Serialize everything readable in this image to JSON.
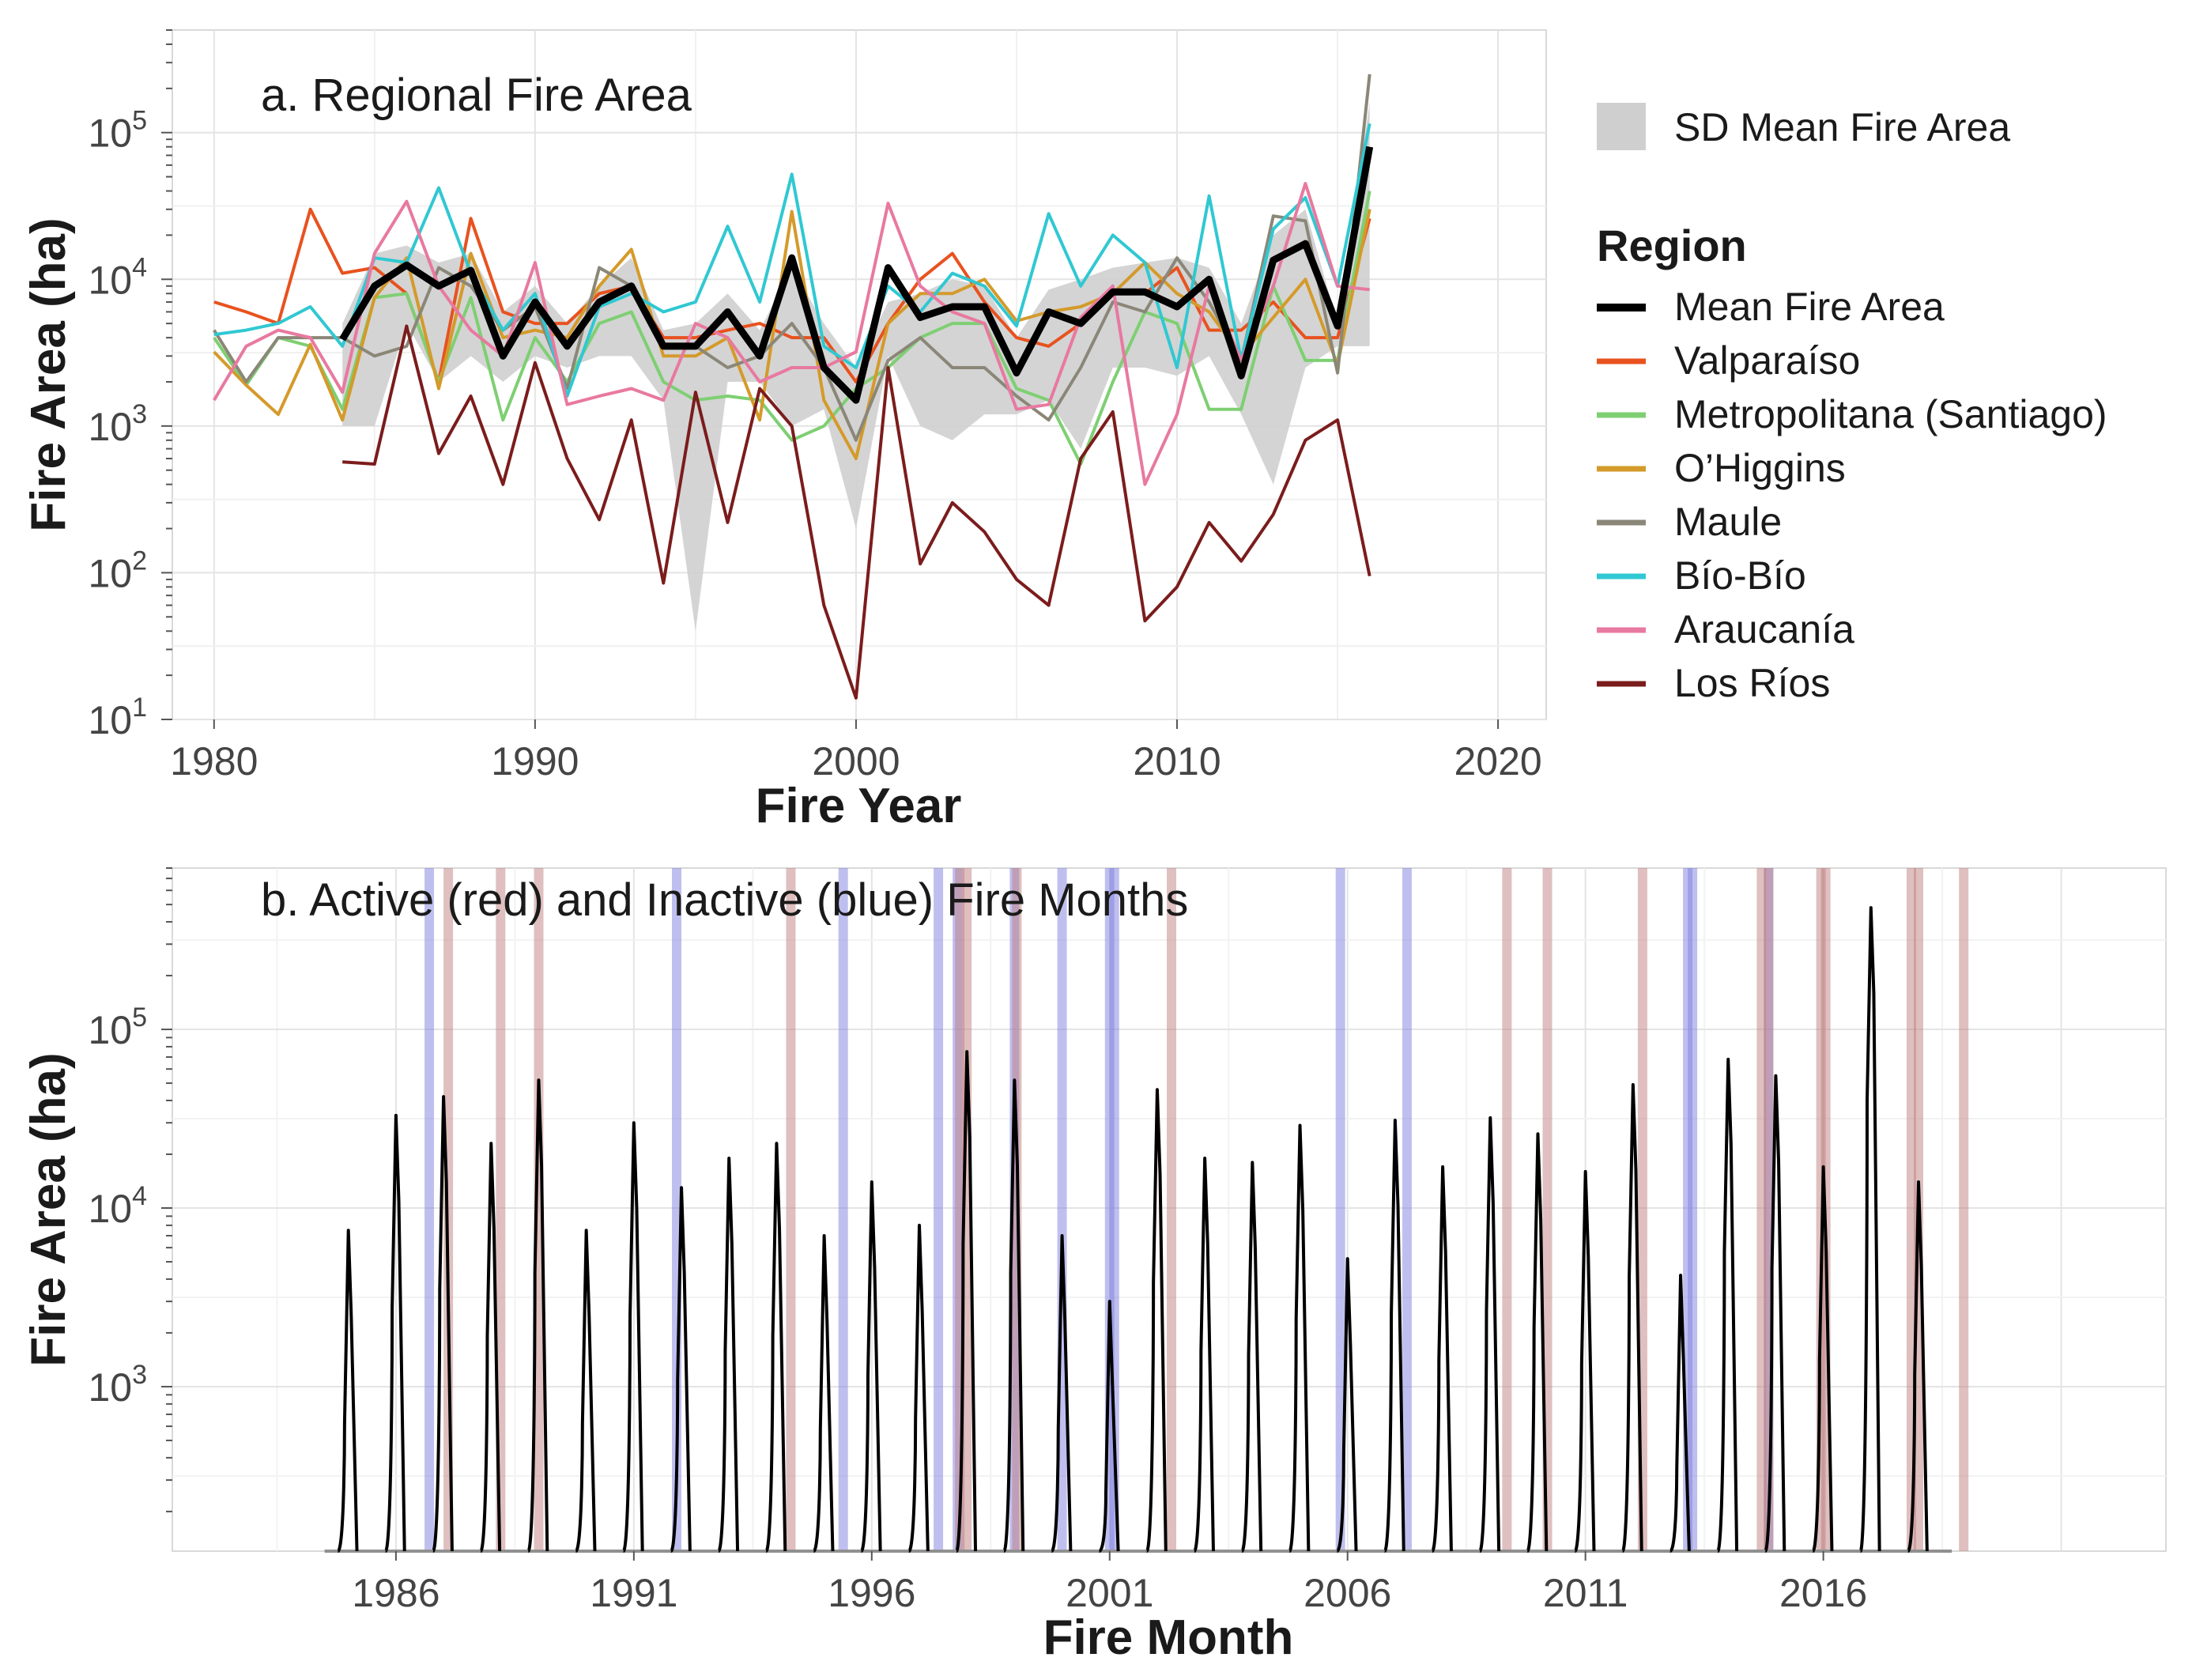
{
  "chart_data": [
    {
      "type": "line",
      "panel": "a",
      "title": "a. Regional Fire Area",
      "xlabel": "Fire Year",
      "ylabel": "Fire Area (ha)",
      "xlim": [
        1978.7,
        2021.5
      ],
      "ylim": [
        10,
        500000
      ],
      "yscale": "log",
      "x_ticks": [
        "1980",
        "1990",
        "2000",
        "2010",
        "2020"
      ],
      "y_ticks": [
        {
          "base": "10",
          "exp": "1"
        },
        {
          "base": "10",
          "exp": "2"
        },
        {
          "base": "10",
          "exp": "3"
        },
        {
          "base": "10",
          "exp": "4"
        },
        {
          "base": "10",
          "exp": "5"
        }
      ],
      "grid": true,
      "legend_position": "right",
      "band": {
        "name": "SD Mean Fire Area",
        "color": "#cfcfcf",
        "x": [
          1984,
          1985,
          1986,
          1987,
          1988,
          1989,
          1990,
          1991,
          1992,
          1993,
          1994,
          1995,
          1996,
          1997,
          1998,
          1999,
          2000,
          2001,
          2002,
          2003,
          2004,
          2005,
          2006,
          2007,
          2008,
          2009,
          2010,
          2011,
          2012,
          2013,
          2014,
          2015,
          2016
        ],
        "upper": [
          5000,
          15000,
          17000,
          13000,
          15000,
          6000,
          9000,
          5000,
          9000,
          14000,
          4500,
          5000,
          8000,
          4500,
          12000,
          5000,
          2500,
          7000,
          8000,
          10000,
          9000,
          4000,
          8500,
          10000,
          12000,
          13000,
          14000,
          12000,
          5000,
          20000,
          30000,
          5000,
          160000
        ],
        "lower": [
          1000,
          1000,
          5000,
          2000,
          3000,
          2000,
          3000,
          2500,
          3000,
          3000,
          1500,
          40,
          2000,
          2000,
          1000,
          1300,
          200,
          3000,
          1000,
          800,
          1200,
          1200,
          1500,
          700,
          2500,
          2500,
          2200,
          3000,
          1200,
          400,
          2500,
          3500,
          3500
        ]
      },
      "legend_title": "Region",
      "series": [
        {
          "name": "Mean Fire Area",
          "color": "#000000",
          "x": [
            1984,
            1985,
            1986,
            1987,
            1988,
            1989,
            1990,
            1991,
            1992,
            1993,
            1994,
            1995,
            1996,
            1997,
            1998,
            1999,
            2000,
            2001,
            2002,
            2003,
            2004,
            2005,
            2006,
            2007,
            2008,
            2009,
            2010,
            2011,
            2012,
            2013,
            2014,
            2015,
            2016
          ],
          "values": [
            3900,
            9000,
            12500,
            9000,
            11500,
            3000,
            7000,
            3500,
            7000,
            9000,
            3500,
            3500,
            6000,
            3000,
            14000,
            2500,
            1500,
            12000,
            5500,
            6500,
            6500,
            2300,
            6000,
            5000,
            8200,
            8200,
            6500,
            10000,
            2200,
            13500,
            17500,
            4800,
            80000
          ]
        },
        {
          "name": "Valparaíso",
          "color": "#e8521f",
          "x": [
            1980,
            1981,
            1982,
            1983,
            1984,
            1985,
            1986,
            1987,
            1988,
            1989,
            1990,
            1991,
            1992,
            1993,
            1994,
            1995,
            1996,
            1997,
            1998,
            1999,
            2000,
            2001,
            2002,
            2003,
            2004,
            2005,
            2006,
            2007,
            2008,
            2009,
            2010,
            2011,
            2012,
            2013,
            2014,
            2015,
            2016
          ],
          "values": [
            7000,
            6000,
            5000,
            30000,
            11000,
            12000,
            8000,
            2000,
            26000,
            6000,
            5000,
            5000,
            8000,
            9000,
            4000,
            4000,
            4500,
            5000,
            4000,
            4000,
            2000,
            5000,
            10000,
            15000,
            7000,
            4000,
            3500,
            5000,
            8000,
            8000,
            12000,
            4500,
            4500,
            7000,
            4000,
            4000,
            26000
          ]
        },
        {
          "name": "Metropolitana (Santiago)",
          "color": "#7ecf72",
          "x": [
            1980,
            1981,
            1982,
            1983,
            1984,
            1985,
            1986,
            1987,
            1988,
            1989,
            1990,
            1991,
            1992,
            1993,
            1994,
            1995,
            1996,
            1997,
            1998,
            1999,
            2000,
            2001,
            2002,
            2003,
            2004,
            2005,
            2006,
            2007,
            2008,
            2009,
            2010,
            2011,
            2012,
            2013,
            2014,
            2015,
            2016
          ],
          "values": [
            4000,
            1900,
            4000,
            3500,
            1300,
            7500,
            8000,
            2000,
            7500,
            1100,
            4000,
            2000,
            5000,
            6000,
            2000,
            1500,
            1600,
            1500,
            800,
            1000,
            1800,
            2500,
            4000,
            5000,
            5000,
            1800,
            1500,
            550,
            2000,
            6000,
            5000,
            1300,
            1300,
            9000,
            2800,
            2800,
            40000
          ]
        },
        {
          "name": "O’Higgins",
          "color": "#d49a2a",
          "x": [
            1980,
            1981,
            1982,
            1983,
            1984,
            1985,
            1986,
            1987,
            1988,
            1989,
            1990,
            1991,
            1992,
            1993,
            1994,
            1995,
            1996,
            1997,
            1998,
            1999,
            2000,
            2001,
            2002,
            2003,
            2004,
            2005,
            2006,
            2007,
            2008,
            2009,
            2010,
            2011,
            2012,
            2013,
            2014,
            2015,
            2016
          ],
          "values": [
            3200,
            1900,
            1200,
            3600,
            1100,
            7500,
            14000,
            1800,
            15000,
            4000,
            4500,
            4000,
            9000,
            16000,
            3000,
            3000,
            4000,
            1100,
            29000,
            1500,
            600,
            5000,
            8000,
            8000,
            10000,
            5200,
            6000,
            6500,
            8000,
            13000,
            8000,
            6000,
            3000,
            5500,
            10000,
            2600,
            30000
          ]
        },
        {
          "name": "Maule",
          "color": "#8b8778",
          "x": [
            1980,
            1981,
            1982,
            1983,
            1984,
            1985,
            1986,
            1987,
            1988,
            1989,
            1990,
            1991,
            1992,
            1993,
            1994,
            1995,
            1996,
            1997,
            1998,
            1999,
            2000,
            2001,
            2002,
            2003,
            2004,
            2005,
            2006,
            2007,
            2008,
            2009,
            2010,
            2011,
            2012,
            2013,
            2014,
            2015,
            2016
          ],
          "values": [
            4500,
            2000,
            4000,
            4000,
            4000,
            3000,
            3500,
            12000,
            9000,
            4500,
            6500,
            1800,
            12000,
            9000,
            3500,
            3500,
            2500,
            3000,
            5000,
            2500,
            800,
            2800,
            4000,
            2500,
            2500,
            1600,
            1100,
            2500,
            7000,
            6000,
            14000,
            7000,
            2800,
            27000,
            25000,
            2300,
            250000
          ]
        },
        {
          "name": "Bío-Bío",
          "color": "#30c8d2",
          "x": [
            1980,
            1981,
            1982,
            1983,
            1984,
            1985,
            1986,
            1987,
            1988,
            1989,
            1990,
            1991,
            1992,
            1993,
            1994,
            1995,
            1996,
            1997,
            1998,
            1999,
            2000,
            2001,
            2002,
            2003,
            2004,
            2005,
            2006,
            2007,
            2008,
            2009,
            2010,
            2011,
            2012,
            2013,
            2014,
            2015,
            2016
          ],
          "values": [
            4200,
            4500,
            5000,
            6500,
            3500,
            14000,
            13000,
            42000,
            11000,
            4500,
            8000,
            1600,
            6500,
            8000,
            6000,
            7000,
            23000,
            7000,
            52000,
            3500,
            2500,
            9000,
            6000,
            11000,
            9000,
            4800,
            28000,
            9000,
            20000,
            13000,
            2500,
            37000,
            2800,
            22000,
            36000,
            9000,
            115000
          ]
        },
        {
          "name": "Araucanía",
          "color": "#e879a0",
          "x": [
            1980,
            1981,
            1982,
            1983,
            1984,
            1985,
            1986,
            1987,
            1988,
            1989,
            1990,
            1991,
            1992,
            1993,
            1994,
            1995,
            1996,
            1997,
            1998,
            1999,
            2000,
            2001,
            2002,
            2003,
            2004,
            2005,
            2006,
            2007,
            2008,
            2009,
            2010,
            2011,
            2012,
            2013,
            2014,
            2015,
            2016
          ],
          "values": [
            1500,
            3500,
            4500,
            4000,
            1700,
            15000,
            34000,
            9000,
            4500,
            3000,
            13000,
            1400,
            1600,
            1800,
            1500,
            5000,
            4000,
            2000,
            2500,
            2500,
            3200,
            33000,
            9000,
            6000,
            5000,
            1300,
            1400,
            5500,
            9000,
            400,
            1200,
            9000,
            2800,
            9000,
            45000,
            9000,
            8500
          ]
        },
        {
          "name": "Los Ríos",
          "color": "#7b1c1c",
          "x": [
            1984,
            1985,
            1986,
            1987,
            1988,
            1989,
            1990,
            1991,
            1992,
            1993,
            1994,
            1995,
            1996,
            1997,
            1998,
            1999,
            2000,
            2001,
            2002,
            2003,
            2004,
            2005,
            2006,
            2007,
            2008,
            2009,
            2010,
            2011,
            2012,
            2013,
            2014,
            2015,
            2016
          ],
          "values": [
            570,
            550,
            4800,
            650,
            1600,
            400,
            2700,
            600,
            230,
            1100,
            85,
            1700,
            220,
            1800,
            1000,
            60,
            14,
            2500,
            115,
            300,
            190,
            90,
            60,
            600,
            1250,
            47,
            80,
            220,
            120,
            250,
            800,
            1100,
            95
          ]
        }
      ]
    },
    {
      "type": "line",
      "panel": "b",
      "title": "b. Active (red) and Inactive (blue) Fire Months",
      "xlabel": "Fire Month",
      "ylabel": "Fire Area (ha)",
      "xlim": [
        1981.3,
        2023.2
      ],
      "ylim": [
        120,
        800000
      ],
      "yscale": "log",
      "x_ticks": [
        "1986",
        "1991",
        "1996",
        "2001",
        "2006",
        "2011",
        "2016"
      ],
      "y_ticks": [
        {
          "base": "10",
          "exp": "3"
        },
        {
          "base": "10",
          "exp": "4"
        },
        {
          "base": "10",
          "exp": "5"
        }
      ],
      "grid": true,
      "series_color": "#000000",
      "baseline_color": "#909090",
      "baseline": 120,
      "season_start": [
        1984.5,
        2018.7
      ],
      "peaks_center_year": [
        1985,
        1986,
        1987,
        1988,
        1989,
        1990,
        1991,
        1992,
        1993,
        1994,
        1995,
        1996,
        1997,
        1998,
        1999,
        2000,
        2001,
        2002,
        2003,
        2004,
        2005,
        2006,
        2007,
        2008,
        2009,
        2010,
        2011,
        2012,
        2013,
        2014,
        2015,
        2016,
        2017,
        2018
      ],
      "peaks_value_ha": [
        7500,
        33000,
        42000,
        23000,
        52000,
        7500,
        30000,
        13000,
        19000,
        23000,
        7000,
        14000,
        8000,
        75000,
        52000,
        7000,
        3000,
        46000,
        19000,
        18000,
        29000,
        5200,
        31000,
        17000,
        32000,
        26000,
        16000,
        49000,
        4200,
        68000,
        55000,
        17000,
        480000,
        14000
      ],
      "active_months": [
        1987.1,
        1988.2,
        1989.0,
        1994.3,
        1997.85,
        1998.0,
        1999.05,
        2002.3,
        2009.35,
        2010.2,
        2012.2,
        2014.7,
        2014.85,
        2015.95,
        2016.05,
        2017.85,
        2018.0,
        2018.95
      ],
      "inactive_months": [
        1986.7,
        1991.9,
        1995.4,
        1997.4,
        1997.8,
        1999.0,
        2000.0,
        2001.0,
        2001.1,
        2005.85,
        2007.25,
        2013.15,
        2013.25,
        2014.85
      ]
    }
  ]
}
